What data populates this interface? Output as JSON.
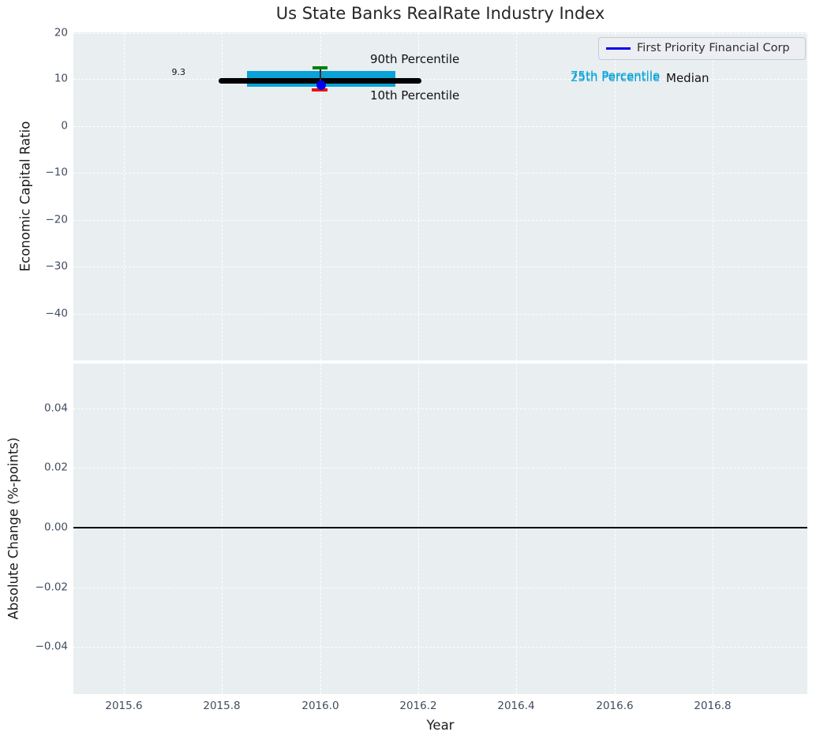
{
  "figure": {
    "title": "Us State Banks RealRate Industry Index",
    "background": "#ffffff",
    "plot_background": "#e9eef0",
    "grid_color": "#ffffff"
  },
  "legend": {
    "label": "First Priority Financial Corp",
    "line_color": "#0000f0"
  },
  "axes": {
    "x": {
      "label": "Year",
      "ticks": [
        "2015.6",
        "2015.8",
        "2016.0",
        "2016.2",
        "2016.4",
        "2016.6",
        "2016.8"
      ]
    },
    "top_y": {
      "label": "Economic Capital Ratio",
      "ticks": [
        "20",
        "10",
        "0",
        "−10",
        "−20",
        "−30",
        "−40"
      ]
    },
    "bottom_y": {
      "label": "Absolute Change (%-points)",
      "ticks": [
        "0.04",
        "0.02",
        "0.00",
        "−0.02",
        "−0.04"
      ]
    }
  },
  "annotations": {
    "p90_label": "90th Percentile",
    "p10_label": "10th Percentile",
    "p75_label": "75th Percentile",
    "p25_label": "25th Percentile",
    "median_label": "Median",
    "median_value_label": "9.3"
  },
  "colors": {
    "iqr_box": "#0aa2d8",
    "median_line": "#000000",
    "p90_marker": "#008000",
    "p10_marker": "#ee1100",
    "company_marker": "#0000f0",
    "percentile_text": "#0aa2d8",
    "zero_line": "#000000",
    "tick_text": "#3f4c60"
  },
  "chart_data": [
    {
      "type": "box",
      "title": "Us State Banks RealRate Industry Index",
      "xlabel": "Year",
      "ylabel": "Economic Capital Ratio",
      "xlim": [
        2015.5,
        2017.0
      ],
      "ylim": [
        -50,
        20
      ],
      "xticks": [
        2015.6,
        2015.8,
        2016.0,
        2016.2,
        2016.4,
        2016.6,
        2016.8
      ],
      "yticks": [
        20,
        10,
        0,
        -10,
        -20,
        -30,
        -40
      ],
      "grid": true,
      "legend_position": "upper right",
      "legend_entries": [
        "First Priority Financial Corp"
      ],
      "boxes": [
        {
          "x": 2016.0,
          "median": 9.3,
          "median_x_span": [
            2015.8,
            2016.2
          ],
          "q1": 8.4,
          "q3": 11.6,
          "box_x_span": [
            2015.85,
            2016.15
          ],
          "p10": 7.5,
          "p90": 12.3,
          "company_point": {
            "name": "First Priority Financial Corp",
            "x": 2016.0,
            "y": 8.5
          }
        }
      ],
      "annotations": [
        {
          "text": "9.3",
          "x": 2015.72,
          "y": 9.8
        },
        {
          "text": "90th Percentile",
          "x": 2016.11,
          "y": 13.8
        },
        {
          "text": "10th Percentile",
          "x": 2016.11,
          "y": 5.6
        },
        {
          "text": "75th Percentile",
          "x": 2016.52,
          "y": 9.8
        },
        {
          "text": "25th Percentile",
          "x": 2016.52,
          "y": 9.5
        },
        {
          "text": "Median",
          "x": 2016.71,
          "y": 9.6
        }
      ]
    },
    {
      "type": "line",
      "title": "",
      "xlabel": "Year",
      "ylabel": "Absolute Change (%-points)",
      "xlim": [
        2015.5,
        2017.0
      ],
      "ylim": [
        -0.056,
        0.055
      ],
      "xticks": [
        2015.6,
        2015.8,
        2016.0,
        2016.2,
        2016.4,
        2016.6,
        2016.8
      ],
      "yticks": [
        0.04,
        0.02,
        0.0,
        -0.02,
        -0.04
      ],
      "grid": true,
      "zero_line_y": 0.0,
      "series": []
    }
  ]
}
